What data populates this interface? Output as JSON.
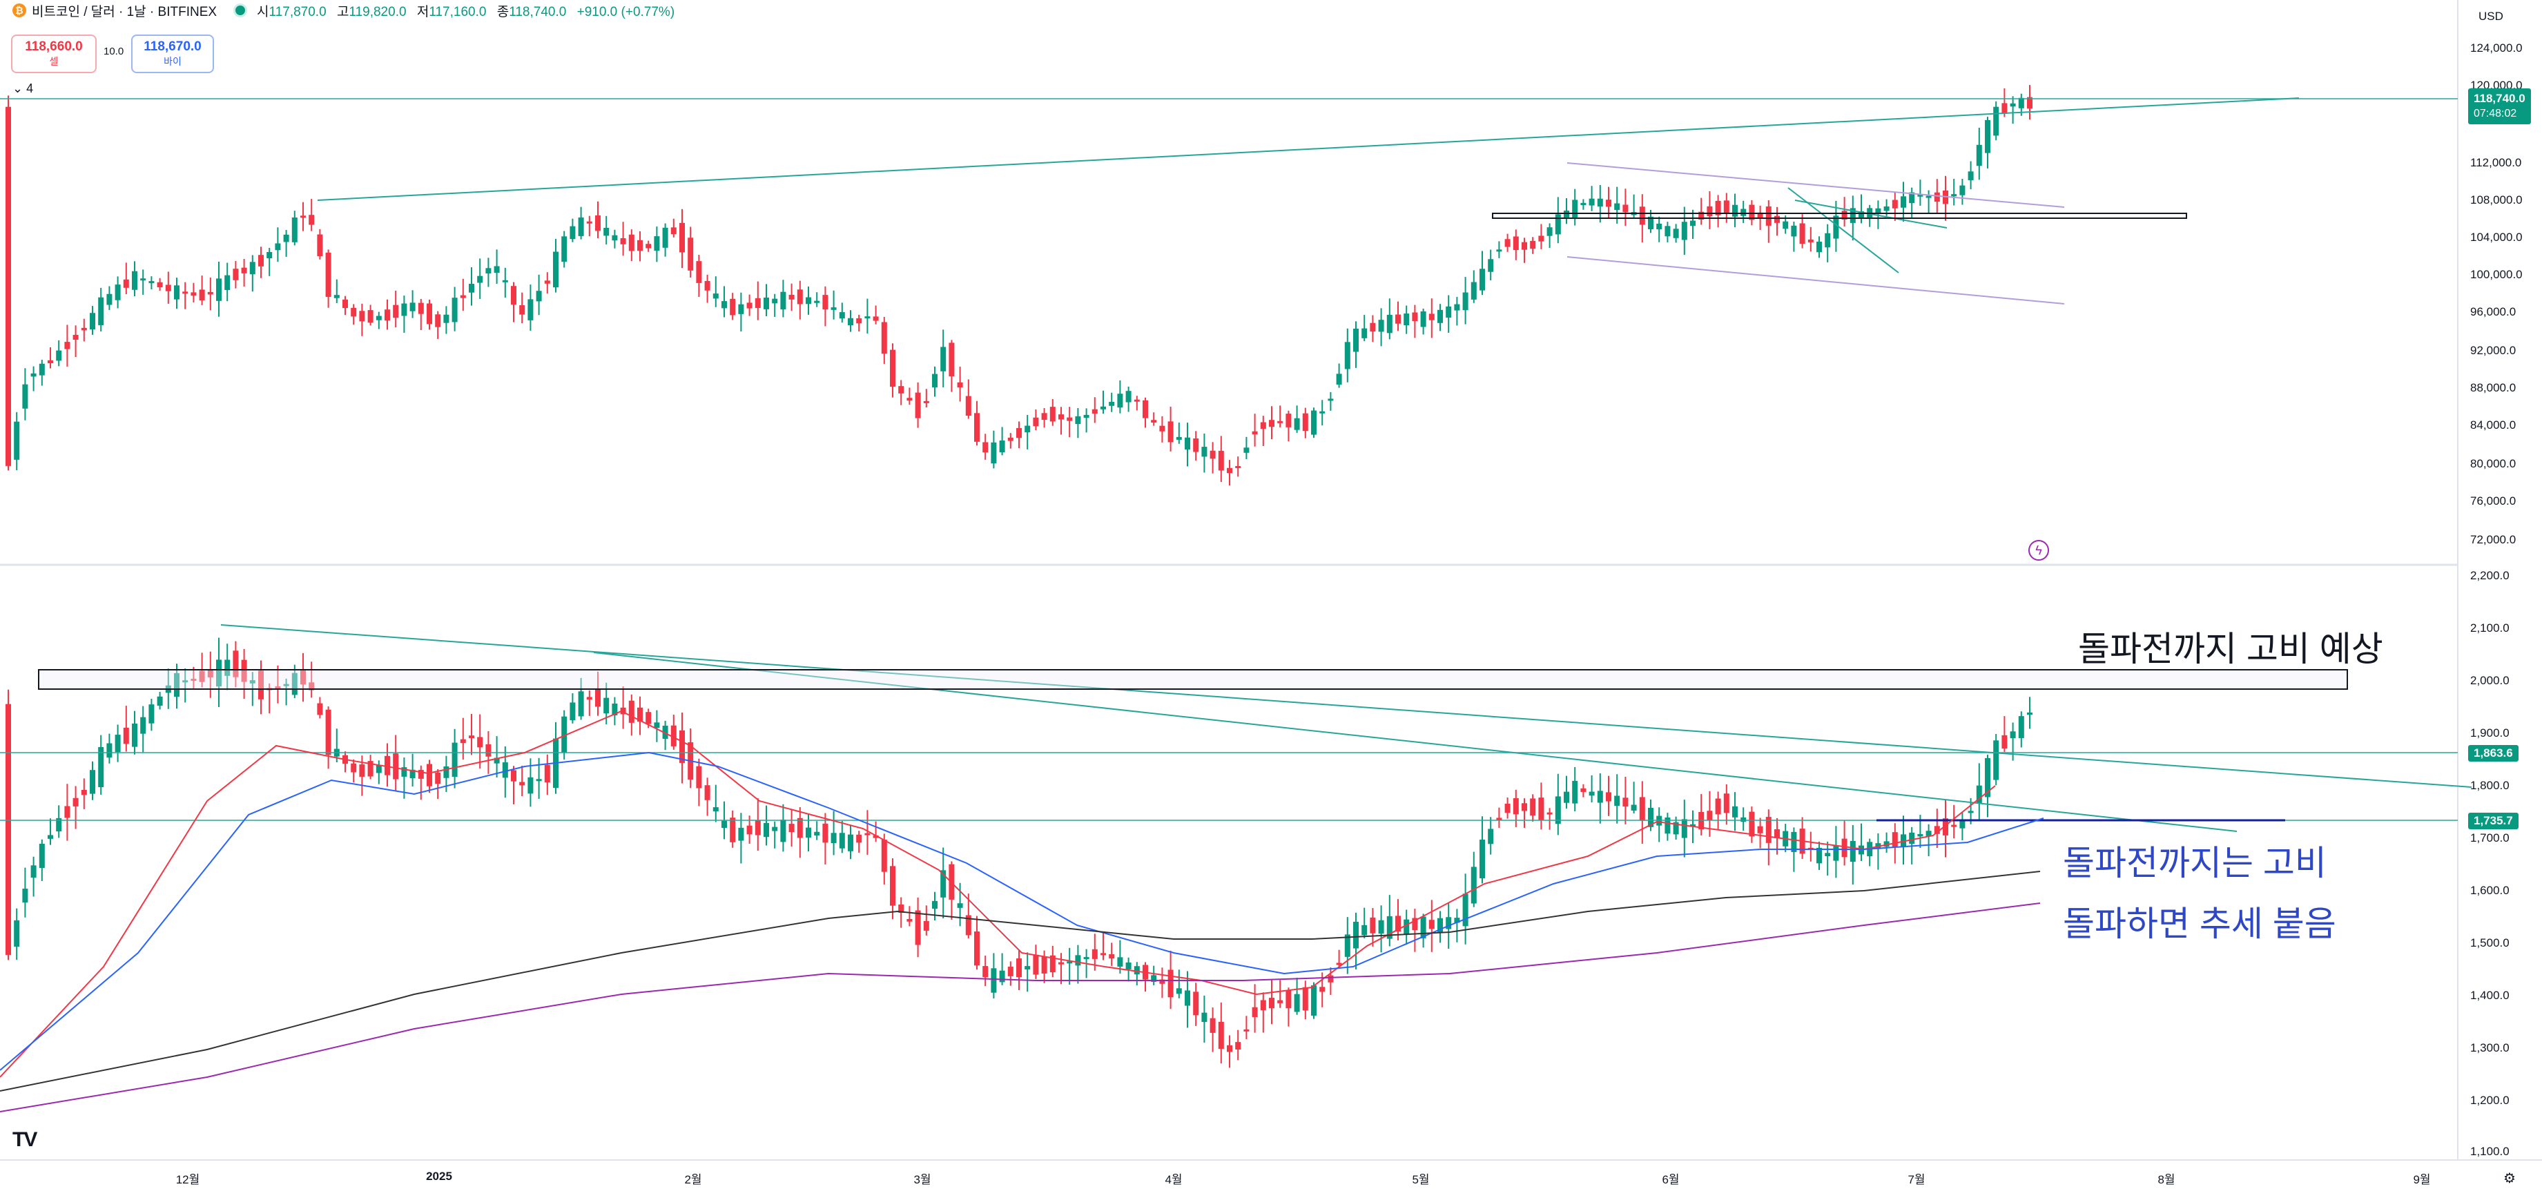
{
  "header": {
    "symbol_icon": "bitcoin-icon",
    "title": "비트코인 / 달러 · 1날 · BITFINEX",
    "market_status_icon": "market-open-dot",
    "ohlc": {
      "open_label": "시",
      "open": "117,870.0",
      "high_label": "고",
      "high": "119,820.0",
      "low_label": "저",
      "low": "117,160.0",
      "close_label": "종",
      "close": "118,740.0",
      "change": "+910.0 (+0.77%)"
    }
  },
  "trade_buttons": {
    "sell_price": "118,660.0",
    "sell_label": "셀",
    "spread": "10.0",
    "buy_price": "118,670.0",
    "buy_label": "바이"
  },
  "indicator_toggle": {
    "icon": "chevron-down-icon",
    "count": "4"
  },
  "currency": "USD",
  "price_axis": [
    "124,000.0",
    "120,000.0",
    "112,000.0",
    "108,000.0",
    "104,000.0",
    "100,000.0",
    "96,000.0",
    "92,000.0",
    "88,000.0",
    "84,000.0",
    "80,000.0",
    "76,000.0",
    "72,000.0"
  ],
  "price_tag": {
    "value": "118,740.0",
    "countdown": "07:48:02"
  },
  "lower_axis": [
    "2,200.0",
    "2,100.0",
    "2,000.0",
    "1,900.0",
    "1,800.0",
    "1,700.0",
    "1,600.0",
    "1,500.0",
    "1,400.0",
    "1,300.0",
    "1,200.0",
    "1,100.0"
  ],
  "lower_tags": [
    "1,863.6",
    "1,735.7"
  ],
  "time_axis": [
    "12월",
    "2025",
    "2월",
    "3월",
    "4월",
    "5월",
    "6월",
    "7월",
    "8월",
    "9월"
  ],
  "annotations": {
    "top_right": "돌파전까지 고비 예상",
    "right_line1": "돌파전까지는 고비",
    "right_line2": "돌파하면 추세 붙음"
  },
  "colors": {
    "up": "#089981",
    "down": "#f23645",
    "trendline": "#26a69a",
    "channel": "#b39ddb",
    "annotation_blue": "#2d47c6"
  },
  "logo": "TradingView"
}
